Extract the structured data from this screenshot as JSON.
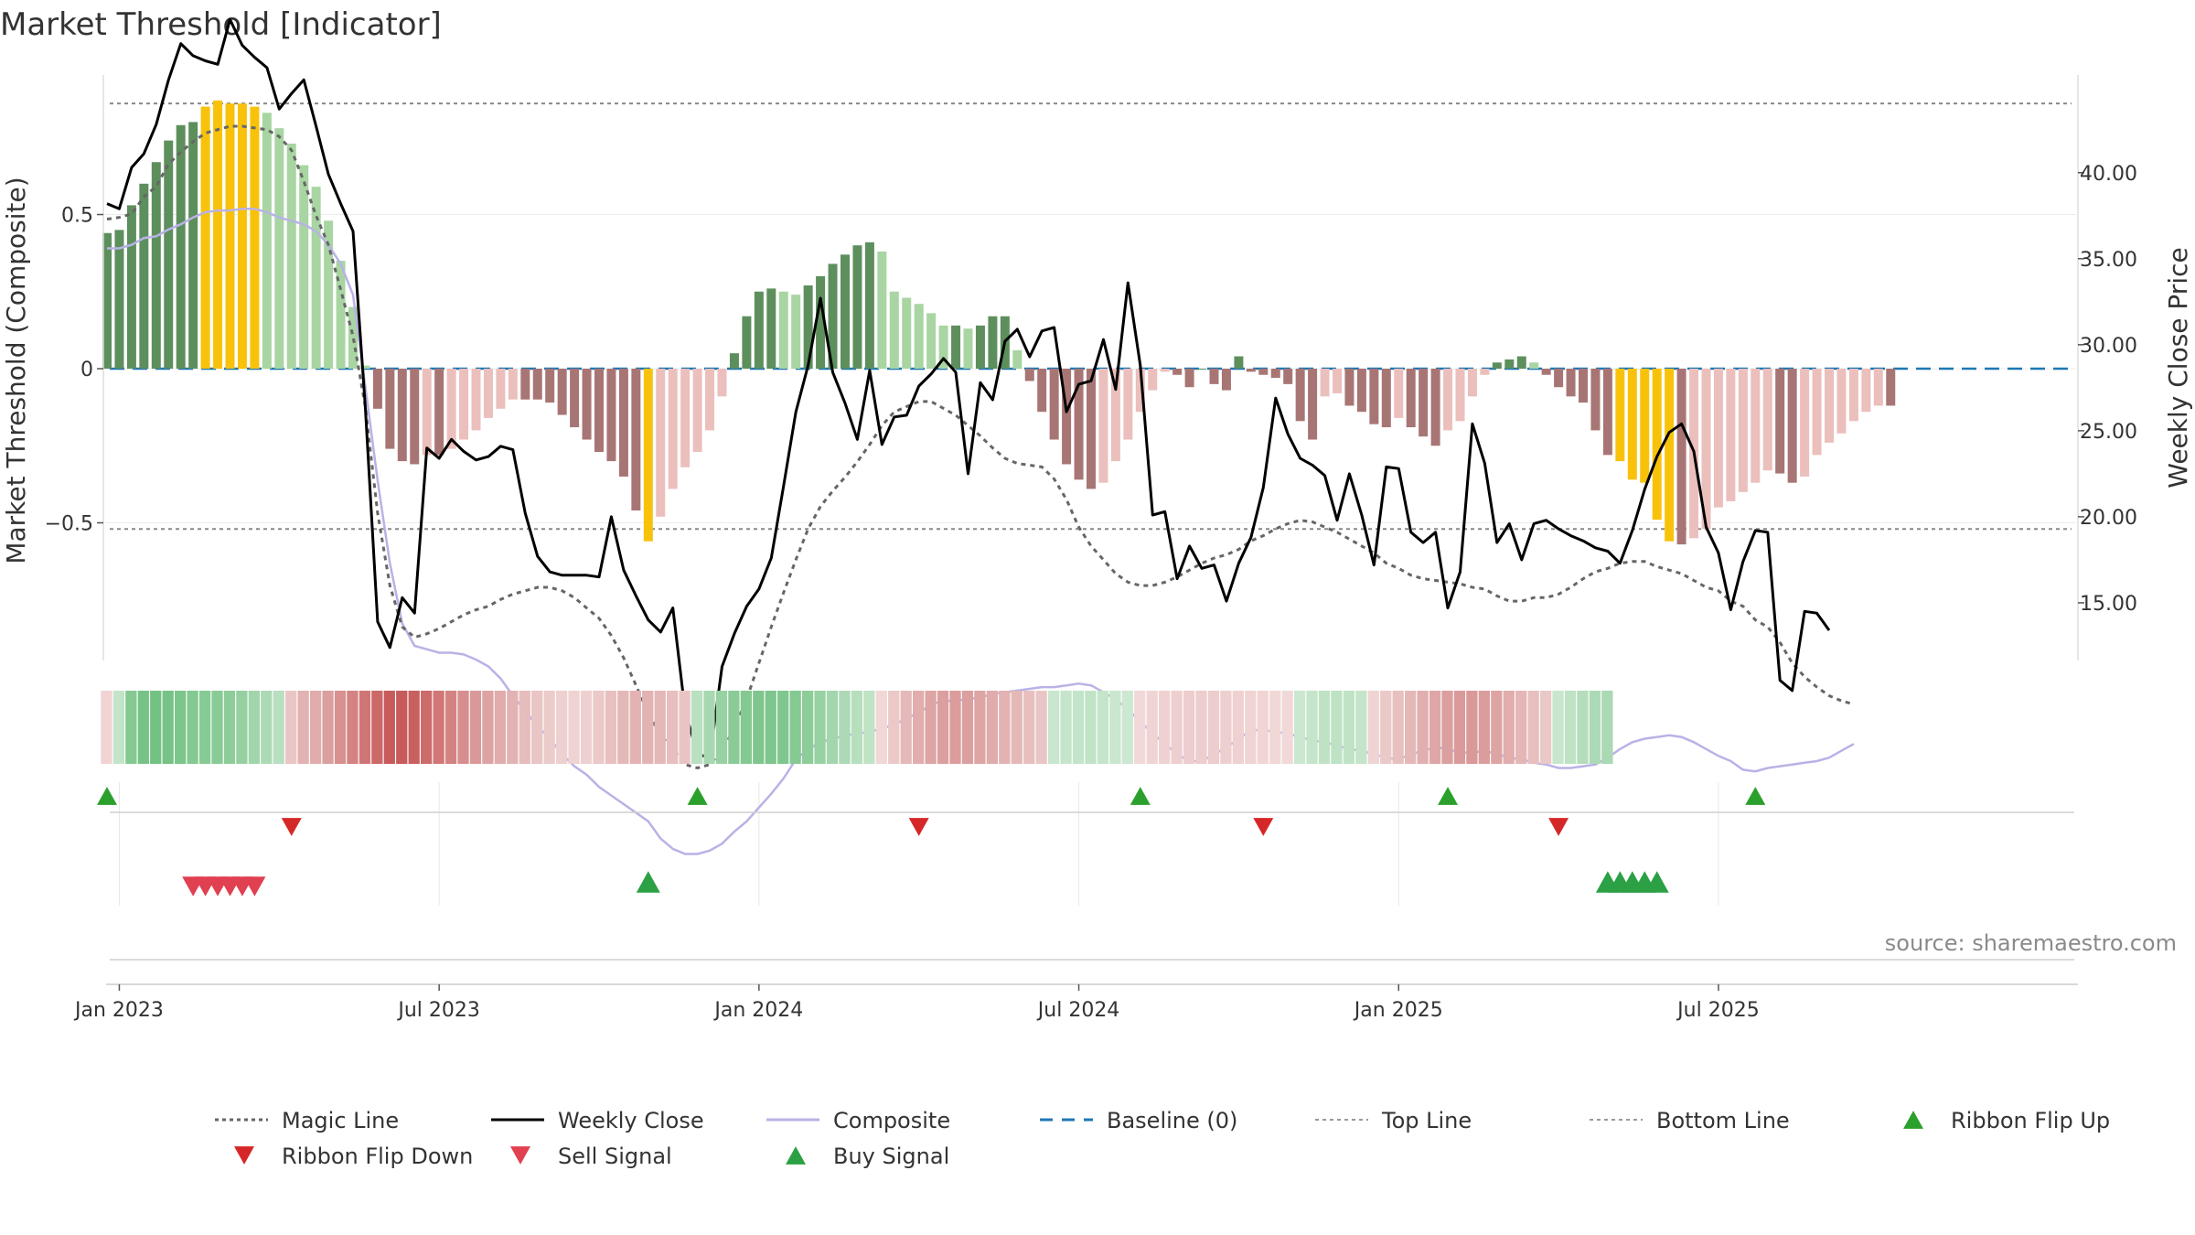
{
  "chart_data": {
    "type": "bar",
    "title": "Market Threshold [Indicator]",
    "source": "source: sharemaestro.com",
    "y_left_label": "Market Threshold (Composite)",
    "y_right_label": "Weekly Close Price",
    "y_left_ticks": [
      {
        "value": 0.5,
        "label": "0.5"
      },
      {
        "value": 0,
        "label": "0"
      },
      {
        "value": -0.5,
        "label": "−0.5"
      }
    ],
    "y_right_ticks": [
      {
        "value": 40,
        "label": "40.00"
      },
      {
        "value": 35,
        "label": "35.00"
      },
      {
        "value": 30,
        "label": "30.00"
      },
      {
        "value": 25,
        "label": "25.00"
      },
      {
        "value": 20,
        "label": "20.00"
      },
      {
        "value": 15,
        "label": "15.00"
      }
    ],
    "ylim_left": [
      -0.95,
      0.95
    ],
    "ylim_right": [
      11.7,
      44.4
    ],
    "top_line": 0.86,
    "bottom_line": -0.52,
    "x_tick_labels": [
      {
        "label": "Jan 2023",
        "week": 1
      },
      {
        "label": "Jul 2023",
        "week": 27
      },
      {
        "label": "Jan 2024",
        "week": 53
      },
      {
        "label": "Jul 2024",
        "week": 79
      },
      {
        "label": "Jan 2025",
        "week": 105
      },
      {
        "label": "Jul 2025",
        "week": 131
      }
    ],
    "histogram_values": [
      0.44,
      0.45,
      0.53,
      0.6,
      0.67,
      0.74,
      0.79,
      0.8,
      0.85,
      0.87,
      0.86,
      0.86,
      0.85,
      0.83,
      0.78,
      0.73,
      0.66,
      0.59,
      0.48,
      0.35,
      0.2,
      0.01,
      -0.13,
      -0.26,
      -0.3,
      -0.31,
      -0.28,
      -0.28,
      -0.26,
      -0.23,
      -0.2,
      -0.16,
      -0.13,
      -0.1,
      -0.1,
      -0.1,
      -0.11,
      -0.15,
      -0.19,
      -0.23,
      -0.27,
      -0.3,
      -0.35,
      -0.46,
      -0.56,
      -0.48,
      -0.39,
      -0.32,
      -0.27,
      -0.2,
      -0.09,
      0.05,
      0.17,
      0.25,
      0.26,
      0.25,
      0.24,
      0.27,
      0.3,
      0.34,
      0.37,
      0.4,
      0.41,
      0.38,
      0.25,
      0.23,
      0.21,
      0.18,
      0.14,
      0.14,
      0.13,
      0.14,
      0.17,
      0.17,
      0.06,
      -0.04,
      -0.14,
      -0.23,
      -0.31,
      -0.36,
      -0.39,
      -0.37,
      -0.3,
      -0.23,
      -0.14,
      -0.07,
      -0.01,
      -0.02,
      -0.06,
      0.0,
      -0.05,
      -0.07,
      0.04,
      -0.01,
      -0.02,
      -0.03,
      -0.05,
      -0.17,
      -0.23,
      -0.09,
      -0.08,
      -0.12,
      -0.14,
      -0.18,
      -0.19,
      -0.16,
      -0.19,
      -0.22,
      -0.25,
      -0.2,
      -0.17,
      -0.09,
      -0.02,
      0.02,
      0.03,
      0.04,
      0.02,
      -0.02,
      -0.06,
      -0.09,
      -0.11,
      -0.2,
      -0.28,
      -0.3,
      -0.36,
      -0.37,
      -0.49,
      -0.56,
      -0.57,
      -0.55,
      -0.52,
      -0.45,
      -0.43,
      -0.4,
      -0.37,
      -0.33,
      -0.34,
      -0.37,
      -0.35,
      -0.28,
      -0.24,
      -0.21,
      -0.17,
      -0.14,
      -0.12,
      -0.12
    ],
    "highlight_weeks": [
      8,
      9,
      10,
      11,
      12,
      44,
      123,
      124,
      125,
      126,
      127
    ],
    "weekly_close": [
      38.2,
      37.9,
      40.3,
      41.1,
      42.8,
      45.4,
      47.5,
      46.8,
      46.5,
      46.3,
      48.9,
      47.4,
      46.7,
      46.1,
      43.7,
      44.6,
      45.4,
      42.7,
      39.9,
      38.2,
      36.6,
      26.4,
      13.9,
      12.4,
      15.3,
      14.4,
      24.0,
      23.4,
      24.5,
      23.8,
      23.3,
      23.5,
      24.1,
      23.9,
      20.2,
      17.7,
      16.8,
      16.6,
      16.6,
      16.6,
      16.5,
      20.0,
      16.9,
      15.4,
      14.0,
      13.3,
      14.7,
      8.7,
      6.2,
      6.0,
      11.3,
      13.2,
      14.8,
      15.8,
      17.6,
      21.8,
      26.1,
      28.8,
      32.7,
      28.4,
      26.6,
      24.5,
      28.5,
      24.2,
      25.8,
      25.9,
      27.6,
      28.3,
      29.2,
      28.4,
      22.5,
      27.8,
      26.8,
      30.2,
      30.9,
      29.3,
      30.8,
      31.0,
      26.1,
      27.7,
      27.9,
      30.3,
      27.4,
      33.6,
      28.8,
      20.1,
      20.3,
      16.4,
      18.3,
      17.0,
      17.2,
      15.1,
      17.3,
      18.8,
      21.7,
      26.9,
      24.8,
      23.4,
      23.0,
      22.4,
      19.8,
      22.5,
      20.1,
      17.2,
      22.9,
      22.8,
      19.1,
      18.5,
      19.1,
      14.7,
      16.8,
      25.4,
      23.1,
      18.5,
      19.6,
      17.5,
      19.6,
      19.8,
      19.3,
      18.9,
      18.6,
      18.2,
      18.0,
      17.3,
      19.2,
      21.6,
      23.5,
      24.9,
      25.4,
      23.8,
      19.4,
      17.9,
      14.6,
      17.4,
      19.2,
      19.1,
      10.5,
      9.9,
      14.5,
      14.4,
      13.4
    ],
    "magic_line_close": [
      37.3,
      37.4,
      37.6,
      38.6,
      39.2,
      40.5,
      41.2,
      41.8,
      42.3,
      42.5,
      42.7,
      42.7,
      42.6,
      42.5,
      42.1,
      41.3,
      39.5,
      37.5,
      35.8,
      33.2,
      30.5,
      26.4,
      20.2,
      16.0,
      13.6,
      13.0,
      13.2,
      13.5,
      13.9,
      14.3,
      14.6,
      14.8,
      15.2,
      15.5,
      15.7,
      15.9,
      15.9,
      15.7,
      15.3,
      14.7,
      14.1,
      13.1,
      11.8,
      10.2,
      8.6,
      7.3,
      6.5,
      5.6,
      5.4,
      5.6,
      6.4,
      7.7,
      9.4,
      11.5,
      13.6,
      15.6,
      17.5,
      19.3,
      20.6,
      21.5,
      22.3,
      23.2,
      24.2,
      25.3,
      26.1,
      26.4,
      26.7,
      26.7,
      26.3,
      25.9,
      25.3,
      24.7,
      24.0,
      23.4,
      23.1,
      23.0,
      22.9,
      22.2,
      21.0,
      19.4,
      18.3,
      17.5,
      16.7,
      16.2,
      16.0,
      16.0,
      16.2,
      16.5,
      16.9,
      17.3,
      17.6,
      17.8,
      18.1,
      18.6,
      18.9,
      19.3,
      19.6,
      19.8,
      19.7,
      19.4,
      19.1,
      18.7,
      18.3,
      17.9,
      17.3,
      17.0,
      16.6,
      16.4,
      16.3,
      16.2,
      16.1,
      15.9,
      15.8,
      15.4,
      15.1,
      15.1,
      15.3,
      15.3,
      15.5,
      15.9,
      16.4,
      16.8,
      17.0,
      17.3,
      17.4,
      17.4,
      17.1,
      16.9,
      16.7,
      16.3,
      15.9,
      15.7,
      15.1,
      14.8,
      14.0,
      13.6,
      12.7,
      11.5,
      10.7,
      10.1,
      9.6,
      9.3,
      9.1
    ],
    "composite_close": [
      35.6,
      35.6,
      35.8,
      36.2,
      36.3,
      36.7,
      37.0,
      37.4,
      37.7,
      37.8,
      37.8,
      37.9,
      37.9,
      37.7,
      37.4,
      37.2,
      37.0,
      36.6,
      35.8,
      34.7,
      32.9,
      27.6,
      22.1,
      17.3,
      13.8,
      12.5,
      12.3,
      12.1,
      12.1,
      12.0,
      11.7,
      11.3,
      10.6,
      9.6,
      8.7,
      7.8,
      7.1,
      6.2,
      5.5,
      5.0,
      4.3,
      3.8,
      3.3,
      2.8,
      2.3,
      1.3,
      0.7,
      0.4,
      0.4,
      0.6,
      1.0,
      1.7,
      2.3,
      3.1,
      3.9,
      4.8,
      5.9,
      6.5,
      6.9,
      7.1,
      7.3,
      7.4,
      7.5,
      7.7,
      7.9,
      8.3,
      8.6,
      9.1,
      9.3,
      9.3,
      9.4,
      9.5,
      9.7,
      9.8,
      9.9,
      10.0,
      10.1,
      10.1,
      10.2,
      10.3,
      10.2,
      9.8,
      9.4,
      8.8,
      8.1,
      7.4,
      6.8,
      6.2,
      5.8,
      5.8,
      6.2,
      6.6,
      7.1,
      7.6,
      7.6,
      7.5,
      7.4,
      7.2,
      7.0,
      6.9,
      6.7,
      6.5,
      6.4,
      6.2,
      6.0,
      5.9,
      6.2,
      6.4,
      6.6,
      6.5,
      6.3,
      6.3,
      6.4,
      6.2,
      6.0,
      5.9,
      5.7,
      5.6,
      5.4,
      5.4,
      5.5,
      5.6,
      6.0,
      6.5,
      6.9,
      7.1,
      7.2,
      7.3,
      7.2,
      6.9,
      6.5,
      6.1,
      5.8,
      5.3,
      5.2,
      5.4,
      5.5,
      5.6,
      5.7,
      5.8,
      6.0,
      6.4,
      6.8
    ],
    "ribbon": [
      {
        "week": 0,
        "c": "#f2d3d3"
      },
      {
        "week": 1,
        "c": "#c3e4c8"
      },
      {
        "week": 2,
        "c": "#84c992"
      },
      {
        "week": 3,
        "c": "#77c387"
      },
      {
        "week": 4,
        "c": "#74c184"
      },
      {
        "week": 5,
        "c": "#77c387"
      },
      {
        "week": 6,
        "c": "#7cc58b"
      },
      {
        "week": 7,
        "c": "#84c992"
      },
      {
        "week": 8,
        "c": "#86ca94"
      },
      {
        "week": 9,
        "c": "#89cb96"
      },
      {
        "week": 10,
        "c": "#8ecd9a"
      },
      {
        "week": 11,
        "c": "#96d0a1"
      },
      {
        "week": 12,
        "c": "#a1d5ab"
      },
      {
        "week": 13,
        "c": "#acdab5"
      },
      {
        "week": 14,
        "c": "#b8dfbf"
      },
      {
        "week": 15,
        "c": "#eac5c5"
      },
      {
        "week": 16,
        "c": "#e3b2b2"
      },
      {
        "week": 17,
        "c": "#e0acac"
      },
      {
        "week": 18,
        "c": "#dc9f9f"
      },
      {
        "week": 19,
        "c": "#d89090"
      },
      {
        "week": 20,
        "c": "#d48282"
      },
      {
        "week": 21,
        "c": "#d07575"
      },
      {
        "week": 22,
        "c": "#cc6868"
      },
      {
        "week": 23,
        "c": "#c75b5b"
      },
      {
        "week": 24,
        "c": "#c75b5b"
      },
      {
        "week": 25,
        "c": "#c96060"
      },
      {
        "week": 26,
        "c": "#cd6a6a"
      },
      {
        "week": 27,
        "c": "#d17777"
      },
      {
        "week": 28,
        "c": "#d48383"
      },
      {
        "week": 29,
        "c": "#d78e8e"
      },
      {
        "week": 30,
        "c": "#da9999"
      },
      {
        "week": 31,
        "c": "#dda3a3"
      },
      {
        "week": 32,
        "c": "#e0acac"
      },
      {
        "week": 33,
        "c": "#e3b3b3"
      },
      {
        "week": 34,
        "c": "#e7bcbc"
      },
      {
        "week": 35,
        "c": "#eac5c5"
      },
      {
        "week": 36,
        "c": "#eccbcb"
      },
      {
        "week": 37,
        "c": "#eed0d0"
      },
      {
        "week": 38,
        "c": "#efd2d2"
      },
      {
        "week": 39,
        "c": "#eed0d0"
      },
      {
        "week": 40,
        "c": "#ecc9c9"
      },
      {
        "week": 41,
        "c": "#e8c0c0"
      },
      {
        "week": 42,
        "c": "#e5b8b8"
      },
      {
        "week": 43,
        "c": "#e3b3b3"
      },
      {
        "week": 44,
        "c": "#e3b3b3"
      },
      {
        "week": 45,
        "c": "#e5b8b8"
      },
      {
        "week": 46,
        "c": "#e8bebe"
      },
      {
        "week": 47,
        "c": "#eac4c4"
      },
      {
        "week": 48,
        "c": "#b9e0c0"
      },
      {
        "week": 49,
        "c": "#a8d8b1"
      },
      {
        "week": 50,
        "c": "#98d1a2"
      },
      {
        "week": 51,
        "c": "#8bcb98"
      },
      {
        "week": 52,
        "c": "#84c992"
      },
      {
        "week": 53,
        "c": "#7fc68e"
      },
      {
        "week": 54,
        "c": "#7ec68d"
      },
      {
        "week": 55,
        "c": "#80c78f"
      },
      {
        "week": 56,
        "c": "#85c993"
      },
      {
        "week": 57,
        "c": "#8dcd99"
      },
      {
        "week": 58,
        "c": "#98d1a2"
      },
      {
        "week": 59,
        "c": "#a2d6ac"
      },
      {
        "week": 60,
        "c": "#add9b6"
      },
      {
        "week": 61,
        "c": "#b7dfbe"
      },
      {
        "week": 62,
        "c": "#c0e3c6"
      },
      {
        "week": 63,
        "c": "#f2d7d7"
      },
      {
        "week": 64,
        "c": "#ecc9c9"
      },
      {
        "week": 65,
        "c": "#e5b9b9"
      },
      {
        "week": 66,
        "c": "#e1adad"
      },
      {
        "week": 67,
        "c": "#dea5a5"
      },
      {
        "week": 68,
        "c": "#dc9f9f"
      },
      {
        "week": 69,
        "c": "#db9c9c"
      },
      {
        "week": 70,
        "c": "#dc9f9f"
      },
      {
        "week": 71,
        "c": "#dea5a5"
      },
      {
        "week": 72,
        "c": "#e0abab"
      },
      {
        "week": 73,
        "c": "#e3b2b2"
      },
      {
        "week": 74,
        "c": "#e5b8b8"
      },
      {
        "week": 75,
        "c": "#e8bfbf"
      },
      {
        "week": 76,
        "c": "#eac5c5"
      },
      {
        "week": 77,
        "c": "#c9e6ce"
      },
      {
        "week": 78,
        "c": "#c4e5c9"
      },
      {
        "week": 79,
        "c": "#c2e4c8"
      },
      {
        "week": 80,
        "c": "#c0e3c6"
      },
      {
        "week": 81,
        "c": "#c4e5c9"
      },
      {
        "week": 82,
        "c": "#c9e6ce"
      },
      {
        "week": 83,
        "c": "#cde8d1"
      },
      {
        "week": 84,
        "c": "#f2d9d9"
      },
      {
        "week": 85,
        "c": "#f0d4d4"
      },
      {
        "week": 86,
        "c": "#efd1d1"
      },
      {
        "week": 87,
        "c": "#eecfcf"
      },
      {
        "week": 88,
        "c": "#edcdcd"
      },
      {
        "week": 89,
        "c": "#edcdcd"
      },
      {
        "week": 90,
        "c": "#edcdcd"
      },
      {
        "week": 91,
        "c": "#eecfcf"
      },
      {
        "week": 92,
        "c": "#efd1d1"
      },
      {
        "week": 93,
        "c": "#f0d3d3"
      },
      {
        "week": 94,
        "c": "#f1d5d5"
      },
      {
        "week": 95,
        "c": "#f2d7d7"
      },
      {
        "week": 96,
        "c": "#f2d9d9"
      },
      {
        "week": 97,
        "c": "#cbe7d0"
      },
      {
        "week": 98,
        "c": "#c4e5c9"
      },
      {
        "week": 99,
        "c": "#bfe2c5"
      },
      {
        "week": 100,
        "c": "#bde2c4"
      },
      {
        "week": 101,
        "c": "#c0e3c6"
      },
      {
        "week": 102,
        "c": "#c4e5c9"
      },
      {
        "week": 103,
        "c": "#f0d3d3"
      },
      {
        "week": 104,
        "c": "#ecc9c9"
      },
      {
        "week": 105,
        "c": "#e8c0c0"
      },
      {
        "week": 106,
        "c": "#e5b8b8"
      },
      {
        "week": 107,
        "c": "#e1afaf"
      },
      {
        "week": 108,
        "c": "#dea6a6"
      },
      {
        "week": 109,
        "c": "#dc9f9f"
      },
      {
        "week": 110,
        "c": "#da9a9a"
      },
      {
        "week": 111,
        "c": "#da9999"
      },
      {
        "week": 112,
        "c": "#db9c9c"
      },
      {
        "week": 113,
        "c": "#dea4a4"
      },
      {
        "week": 114,
        "c": "#e1adad"
      },
      {
        "week": 115,
        "c": "#e4b6b6"
      },
      {
        "week": 116,
        "c": "#e8bfbf"
      },
      {
        "week": 117,
        "c": "#ebc8c8"
      },
      {
        "week": 118,
        "c": "#c8e6cd"
      },
      {
        "week": 119,
        "c": "#bde2c4"
      },
      {
        "week": 120,
        "c": "#b4ddbb"
      },
      {
        "week": 121,
        "c": "#addab6"
      },
      {
        "week": 122,
        "c": "#aad9b3"
      }
    ],
    "series": [
      {
        "name": "Magic Line",
        "role": "dashed line"
      },
      {
        "name": "Weekly Close",
        "role": "line, right axis"
      },
      {
        "name": "Composite",
        "role": "line"
      },
      {
        "name": "Baseline (0)",
        "role": "dashed line"
      },
      {
        "name": "Top Line",
        "role": "dotted line"
      },
      {
        "name": "Bottom Line",
        "role": "dotted line"
      },
      {
        "name": "Ribbon Flip Up",
        "role": "marker"
      },
      {
        "name": "Ribbon Flip Down",
        "role": "marker"
      },
      {
        "name": "Sell Signal",
        "role": "marker"
      },
      {
        "name": "Buy Signal",
        "role": "marker"
      }
    ],
    "ribbon_flip_up_weeks": [
      0,
      48,
      84,
      109,
      134
    ],
    "ribbon_flip_down_weeks": [
      15,
      66,
      94,
      118
    ],
    "sell_signal_weeks": [
      7,
      8,
      9,
      10,
      11,
      12
    ],
    "buy_signal_weeks": [
      44,
      122,
      123,
      124,
      125,
      126
    ],
    "legend": [
      {
        "label": "Magic Line",
        "kind": "dotted",
        "color": "#666666"
      },
      {
        "label": "Weekly Close",
        "kind": "solid",
        "color": "#000000"
      },
      {
        "label": "Composite",
        "kind": "solid",
        "color": "#b9b2e6"
      },
      {
        "label": "Baseline (0)",
        "kind": "dashed",
        "color": "#1f77b4"
      },
      {
        "label": "Top Line",
        "kind": "dotted",
        "color": "#999999"
      },
      {
        "label": "Bottom Line",
        "kind": "dotted",
        "color": "#999999"
      },
      {
        "label": "Ribbon Flip Up",
        "kind": "tri-up",
        "color": "#2ca02c"
      },
      {
        "label": "Ribbon Flip Down",
        "kind": "tri-down",
        "color": "#d62728"
      },
      {
        "label": "Sell Signal",
        "kind": "tri-down",
        "color": "#e04050"
      },
      {
        "label": "Buy Signal",
        "kind": "tri-up",
        "color": "#2ca044"
      }
    ],
    "colors": {
      "strong_pos": "#5d8f5d",
      "weak_pos": "#a8d5a2",
      "strong_neg": "#a87575",
      "weak_neg": "#ebbfbc",
      "highlight": "#f9c20a"
    }
  }
}
